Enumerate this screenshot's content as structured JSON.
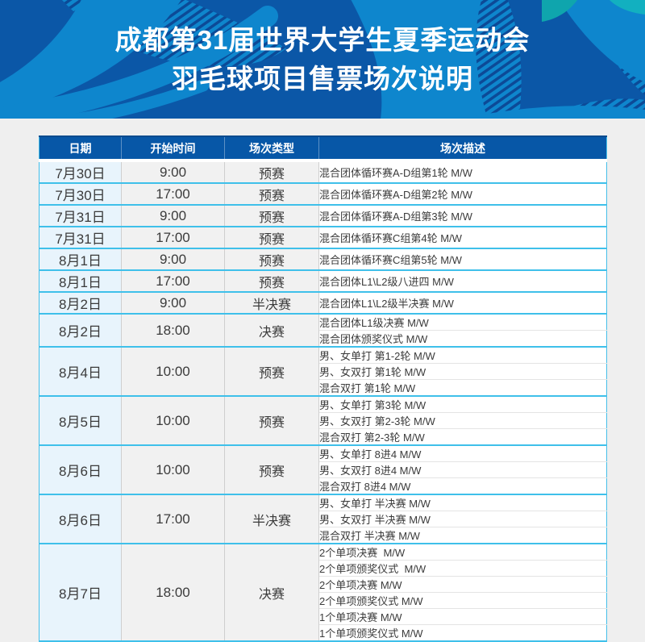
{
  "banner": {
    "title_line1": "成都第31届世界大学生夏季运动会",
    "title_line2": "羽毛球项目售票场次说明",
    "colors": {
      "base_blue": "#0b57a7",
      "swirl_blue": "#0e86cd",
      "stripe_navy": "#0c4a97",
      "teal_accent": "#0fa5ad",
      "title_text": "#ffffff"
    }
  },
  "table": {
    "columns": [
      "日期",
      "开始时间",
      "场次类型",
      "场次描述"
    ],
    "colors": {
      "header_bg": "#0757a7",
      "header_text": "#ffffff",
      "group_border": "#3fc0ea",
      "date_cell_bg": "#e8f4fc",
      "time_type_cell_bg": "#f1f1f1",
      "body_text": "#3b3b3b"
    },
    "rows": [
      {
        "date": "7月30日",
        "time": "9:00",
        "type": "预赛",
        "events": [
          "混合团体循环赛A-D组第1轮 M/W"
        ]
      },
      {
        "date": "7月30日",
        "time": "17:00",
        "type": "预赛",
        "events": [
          "混合团体循环赛A-D组第2轮 M/W"
        ]
      },
      {
        "date": "7月31日",
        "time": "9:00",
        "type": "预赛",
        "events": [
          "混合团体循环赛A-D组第3轮 M/W"
        ]
      },
      {
        "date": "7月31日",
        "time": "17:00",
        "type": "预赛",
        "events": [
          "混合团体循环赛C组第4轮 M/W"
        ]
      },
      {
        "date": "8月1日",
        "time": "9:00",
        "type": "预赛",
        "events": [
          "混合团体循环赛C组第5轮 M/W"
        ]
      },
      {
        "date": "8月1日",
        "time": "17:00",
        "type": "预赛",
        "events": [
          "混合团体L1\\L2级八进四 M/W"
        ]
      },
      {
        "date": "8月2日",
        "time": "9:00",
        "type": "半决赛",
        "events": [
          "混合团体L1\\L2级半决赛 M/W"
        ]
      },
      {
        "date": "8月2日",
        "time": "18:00",
        "type": "决赛",
        "events": [
          "混合团体L1级决赛 M/W",
          "混合团体颁奖仪式 M/W"
        ]
      },
      {
        "date": "8月4日",
        "time": "10:00",
        "type": "预赛",
        "events": [
          "男、女单打 第1-2轮 M/W",
          "男、女双打 第1轮 M/W",
          "混合双打 第1轮 M/W"
        ]
      },
      {
        "date": "8月5日",
        "time": "10:00",
        "type": "预赛",
        "events": [
          "男、女单打 第3轮 M/W",
          "男、女双打 第2-3轮 M/W",
          "混合双打 第2-3轮 M/W"
        ]
      },
      {
        "date": "8月6日",
        "time": "10:00",
        "type": "预赛",
        "events": [
          "男、女单打 8进4 M/W",
          "男、女双打 8进4 M/W",
          "混合双打 8进4 M/W"
        ]
      },
      {
        "date": "8月6日",
        "time": "17:00",
        "type": "半决赛",
        "events": [
          "男、女单打 半决赛 M/W",
          "男、女双打 半决赛 M/W",
          "混合双打 半决赛 M/W"
        ]
      },
      {
        "date": "8月7日",
        "time": "18:00",
        "type": "决赛",
        "events": [
          "2个单项决赛  M/W",
          "2个单项颁奖仪式  M/W",
          "2个单项决赛 M/W",
          "2个单项颁奖仪式 M/W",
          "1个单项决赛 M/W",
          "1个单项颁奖仪式 M/W"
        ]
      }
    ]
  }
}
